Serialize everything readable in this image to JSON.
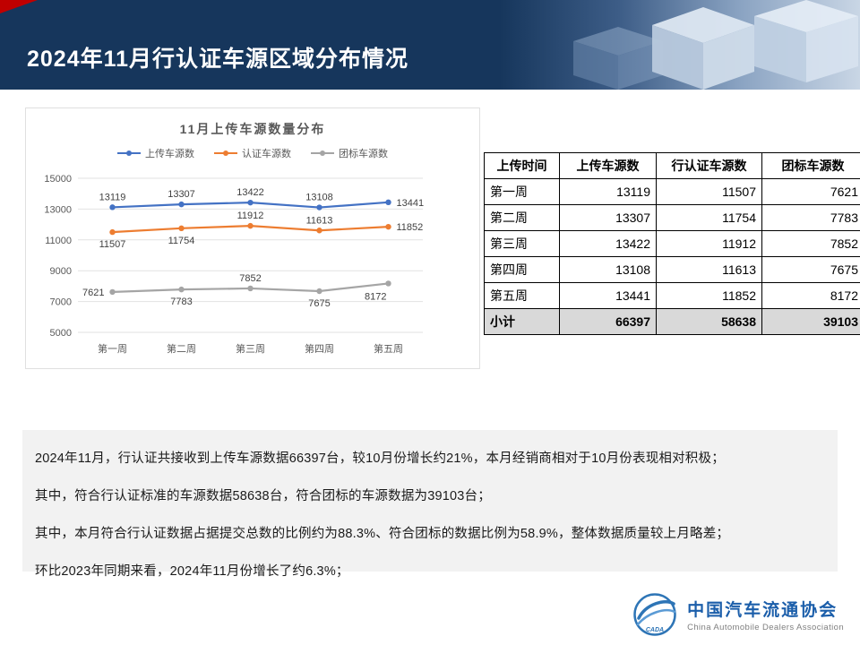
{
  "header": {
    "title": "2024年11月行认证车源区域分布情况"
  },
  "chart_data": {
    "type": "line",
    "title": "11月上传车源数量分布",
    "categories": [
      "第一周",
      "第二周",
      "第三周",
      "第四周",
      "第五周"
    ],
    "series": [
      {
        "name": "上传车源数",
        "color": "#4472c4",
        "values": [
          13119,
          13307,
          13422,
          13108,
          13441
        ]
      },
      {
        "name": "认证车源数",
        "color": "#ed7d31",
        "values": [
          11507,
          11754,
          11912,
          11613,
          11852
        ]
      },
      {
        "name": "团标车源数",
        "color": "#a5a5a5",
        "values": [
          7621,
          7783,
          7852,
          7675,
          8172
        ]
      }
    ],
    "ylim": [
      5000,
      15000
    ],
    "yticks": [
      5000,
      7000,
      9000,
      11000,
      13000,
      15000
    ],
    "grid": true,
    "legend_position": "top"
  },
  "table": {
    "headers": [
      "上传时间",
      "上传车源数",
      "行认证车源数",
      "团标车源数"
    ],
    "rows": [
      [
        "第一周",
        "13119",
        "11507",
        "7621"
      ],
      [
        "第二周",
        "13307",
        "11754",
        "7783"
      ],
      [
        "第三周",
        "13422",
        "11912",
        "7852"
      ],
      [
        "第四周",
        "13108",
        "11613",
        "7675"
      ],
      [
        "第五周",
        "13441",
        "11852",
        "8172"
      ]
    ],
    "total_row": [
      "小计",
      "66397",
      "58638",
      "39103"
    ]
  },
  "summary": {
    "lines": [
      "2024年11月，行认证共接收到上传车源数据66397台，较10月份增长约21%，本月经销商相对于10月份表现相对积极；",
      "其中，符合行认证标准的车源数据58638台，符合团标的车源数据为39103台；",
      "其中，本月符合行认证数据占据提交总数的比例约为88.3%、符合团标的数据比例为58.9%，整体数据质量较上月略差；",
      "环比2023年同期来看，2024年11月份增长了约6.3%；"
    ]
  },
  "footer": {
    "org_name_cn": "中国汽车流通协会",
    "org_name_en": "China Automobile Dealers Association",
    "logo_text": "CADA"
  },
  "colors": {
    "header_bg": "#16365c",
    "accent_red": "#c00000",
    "series_blue": "#4472c4",
    "series_orange": "#ed7d31",
    "series_gray": "#a5a5a5",
    "summary_bg": "#f2f2f2",
    "logo_blue": "#2e75b6"
  }
}
